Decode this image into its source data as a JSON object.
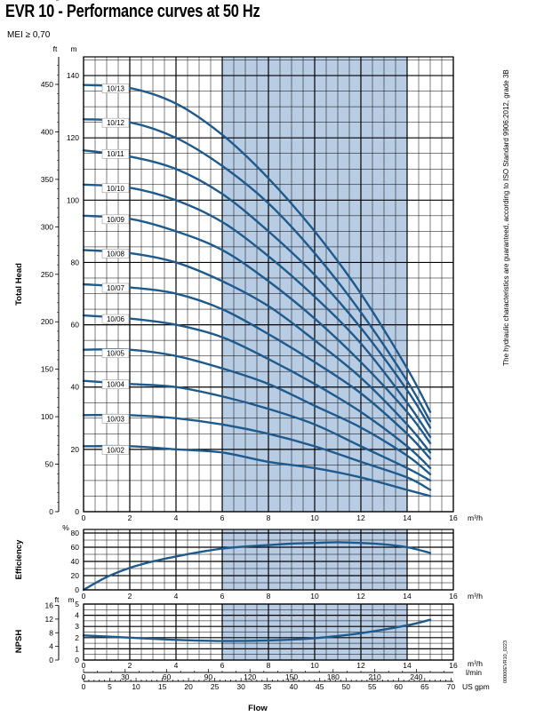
{
  "title": "EVR 10 - Performance curves at 50 Hz",
  "subtitle": "MEI ≥ 0,70",
  "side_note": "The hydraulic characteristics are guaranteed, according to ISO Standard 9906:2012, grade 3B",
  "doc_code": "00000EVR10_0223",
  "xlabel": "Flow",
  "colors": {
    "curve": "#1f5a8c",
    "band": "#b8cce4",
    "grid": "#000000"
  },
  "chart_data": {
    "type": "line",
    "band": {
      "x": [
        6,
        14
      ]
    },
    "x_unit": "m³/h",
    "head": {
      "ylabel": "Total Head",
      "unit_left": "ft",
      "unit_right": "m",
      "xlim": [
        0,
        16
      ],
      "ylim": [
        0,
        146
      ],
      "x_ticks": [
        0,
        2,
        4,
        6,
        8,
        10,
        12,
        14,
        16
      ],
      "m_ticks": [
        0,
        20,
        40,
        60,
        80,
        100,
        120,
        140
      ],
      "ft_ticks": [
        0,
        50,
        100,
        150,
        200,
        250,
        300,
        350,
        400,
        450
      ],
      "series": [
        {
          "name": "10/13",
          "x": [
            0,
            2,
            4,
            6,
            8,
            10,
            12,
            14,
            15
          ],
          "y": [
            137,
            136,
            131,
            121,
            107,
            90,
            70,
            46,
            32
          ]
        },
        {
          "name": "10/12",
          "x": [
            0,
            2,
            4,
            6,
            8,
            10,
            12,
            14,
            15
          ],
          "y": [
            126,
            125,
            120,
            111,
            99,
            83,
            64,
            42,
            29
          ]
        },
        {
          "name": "10/11",
          "x": [
            0,
            2,
            4,
            6,
            8,
            10,
            12,
            14,
            15
          ],
          "y": [
            116,
            114,
            110,
            102,
            90,
            76,
            59,
            39,
            27
          ]
        },
        {
          "name": "10/10",
          "x": [
            0,
            2,
            4,
            6,
            8,
            10,
            12,
            14,
            15
          ],
          "y": [
            105,
            104,
            100,
            93,
            82,
            69,
            54,
            35,
            24
          ]
        },
        {
          "name": "10/09",
          "x": [
            0,
            2,
            4,
            6,
            8,
            10,
            12,
            14,
            15
          ],
          "y": [
            95,
            94,
            90,
            84,
            74,
            62,
            48,
            32,
            22
          ]
        },
        {
          "name": "10/08",
          "x": [
            0,
            2,
            4,
            6,
            8,
            10,
            12,
            14,
            15
          ],
          "y": [
            84,
            83,
            80,
            74,
            66,
            55,
            43,
            28,
            19
          ]
        },
        {
          "name": "10/07",
          "x": [
            0,
            2,
            4,
            6,
            8,
            10,
            12,
            14,
            15
          ],
          "y": [
            73,
            72,
            70,
            65,
            57,
            48,
            38,
            25,
            17
          ]
        },
        {
          "name": "10/06",
          "x": [
            0,
            2,
            4,
            6,
            8,
            10,
            12,
            14,
            15
          ],
          "y": [
            63,
            62,
            60,
            56,
            49,
            41,
            32,
            21,
            14
          ]
        },
        {
          "name": "10/05",
          "x": [
            0,
            2,
            4,
            6,
            8,
            10,
            12,
            14,
            15
          ],
          "y": [
            52,
            52,
            50,
            46,
            41,
            34,
            27,
            18,
            12
          ]
        },
        {
          "name": "10/04",
          "x": [
            0,
            2,
            4,
            6,
            8,
            10,
            12,
            14,
            15
          ],
          "y": [
            42,
            41,
            40,
            37,
            33,
            28,
            21,
            14,
            10
          ]
        },
        {
          "name": "10/03",
          "x": [
            0,
            2,
            4,
            6,
            8,
            10,
            12,
            14,
            15
          ],
          "y": [
            31,
            31,
            30,
            28,
            25,
            21,
            16,
            11,
            7
          ]
        },
        {
          "name": "10/02",
          "x": [
            0,
            2,
            4,
            6,
            8,
            10,
            12,
            14,
            15
          ],
          "y": [
            21,
            21,
            20,
            19,
            16,
            14,
            11,
            7,
            5
          ]
        }
      ]
    },
    "efficiency": {
      "ylabel": "Efficiency",
      "unit": "%",
      "xlim": [
        0,
        16
      ],
      "ylim": [
        0,
        80
      ],
      "x_ticks": [
        0,
        2,
        4,
        6,
        8,
        10,
        12,
        14,
        16
      ],
      "y_ticks": [
        0,
        20,
        40,
        60,
        80
      ],
      "series": [
        {
          "x": [
            0,
            1,
            2,
            3,
            4,
            5,
            6,
            7,
            8,
            9,
            10,
            11,
            12,
            13,
            14,
            15
          ],
          "y": [
            0,
            18,
            31,
            40,
            47,
            53,
            58,
            61,
            63,
            65,
            66,
            67,
            66,
            64,
            60,
            52
          ]
        }
      ]
    },
    "npsh": {
      "ylabel": "NPSH",
      "unit_left": "ft",
      "unit_right": "m",
      "xlim": [
        0,
        16
      ],
      "ylim": [
        0,
        5
      ],
      "x_ticks": [
        0,
        2,
        4,
        6,
        8,
        10,
        12,
        14,
        16
      ],
      "m_ticks": [
        0,
        1,
        2,
        3,
        4,
        5
      ],
      "ft_ticks": [
        0,
        4,
        8,
        12,
        16
      ],
      "series": [
        {
          "x": [
            0,
            2,
            4,
            6,
            8,
            10,
            12,
            14,
            15
          ],
          "y": [
            2.2,
            2.0,
            1.8,
            1.7,
            1.75,
            1.95,
            2.4,
            3.1,
            3.6
          ]
        }
      ]
    },
    "flow_scales": {
      "lmin_unit": "l/min",
      "lmin_ticks": [
        0,
        30,
        60,
        90,
        120,
        150,
        180,
        210,
        240
      ],
      "usgpm_unit": "US gpm",
      "usgpm_ticks": [
        0,
        5,
        10,
        15,
        20,
        25,
        30,
        35,
        40,
        45,
        50,
        55,
        60,
        65,
        70
      ]
    }
  }
}
